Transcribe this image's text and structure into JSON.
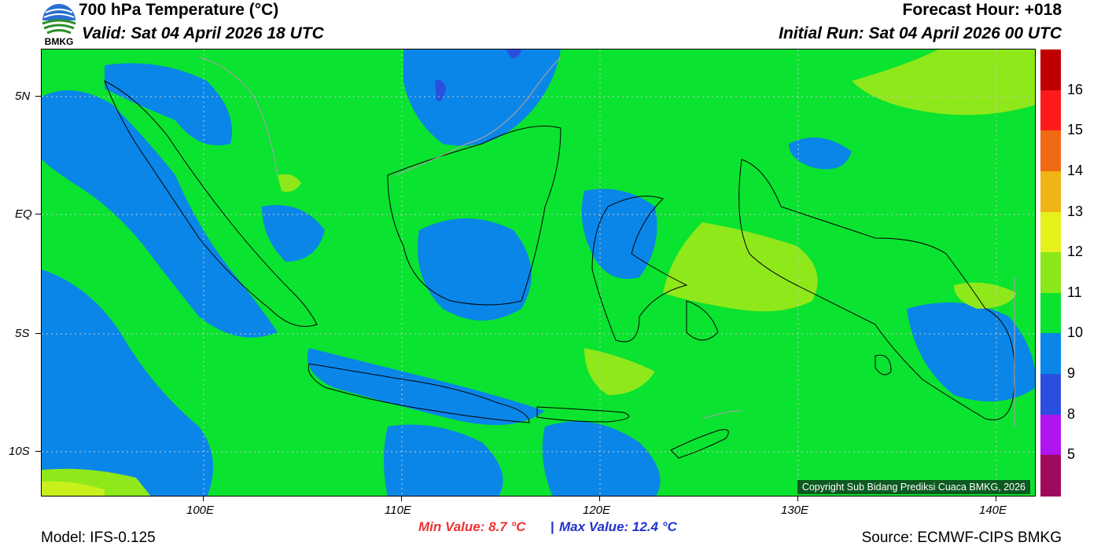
{
  "header": {
    "title": "700 hPa Temperature (°C)",
    "valid": "Valid: Sat 04 April 2026 18 UTC",
    "forecast_hour": "Forecast Hour: +018",
    "initial_run": "Initial Run: Sat 04 April 2026 00 UTC"
  },
  "logo": {
    "text": "BMKG"
  },
  "map": {
    "lat_labels": [
      "5N",
      "EQ",
      "5S",
      "10S"
    ],
    "lon_labels": [
      "100E",
      "110E",
      "120E",
      "130E",
      "140E"
    ],
    "copyright": "Copyright Sub Bidang Prediksi Cuaca BMKG, 2026",
    "colors": {
      "field": "#0ae32f",
      "cool": "#0a86e8",
      "cold": "#2a4fe0",
      "warm": "#8fe81a",
      "warmer": "#c8f01a",
      "coast": "#000000",
      "border": "#a0a0a0"
    }
  },
  "colorbar": {
    "labels": [
      "16",
      "15",
      "14",
      "13",
      "12",
      "11",
      "10",
      "9",
      "8",
      "5"
    ],
    "colors": [
      "#c00000",
      "#ff1a1a",
      "#f06a14",
      "#f0b414",
      "#e6f01a",
      "#8ae81a",
      "#0ae32f",
      "#0a86e8",
      "#2a4fe0",
      "#b014f0",
      "#a00a5a"
    ]
  },
  "footer": {
    "model": "Model: IFS-0.125",
    "min": "Min Value: 8.7 °C",
    "separator": "|",
    "max": "Max Value: 12.4 °C",
    "source": "Source: ECMWF-CIPS BMKG"
  }
}
